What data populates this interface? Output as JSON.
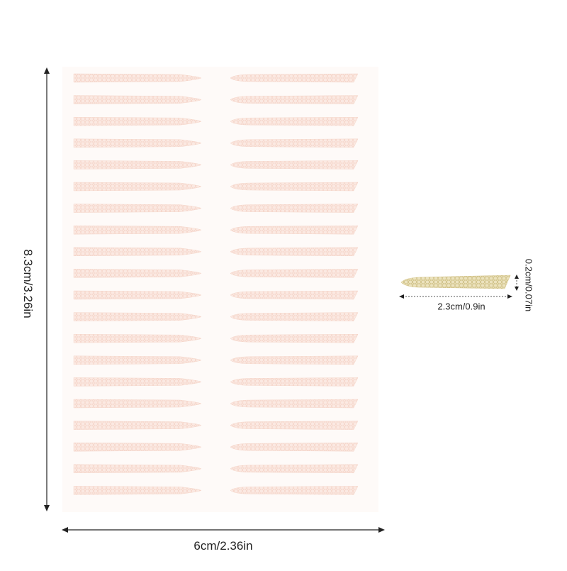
{
  "dimensions": {
    "sheet_height": "8.3cm/3.26in",
    "sheet_width": "6cm/2.36in",
    "strip_length": "2.3cm/0.9in",
    "strip_width": "0.2cm/0.07in"
  },
  "sheet": {
    "columns": 2,
    "strips_per_column": 20
  },
  "colors": {
    "sheet_background": "#fefaf8",
    "strip_fill": "#fbe9e2",
    "strip_pattern": "#f3cfc2",
    "sample_strip_fill": "#ece3be",
    "sample_strip_pattern": "#c7b676",
    "arrow": "#222222"
  }
}
